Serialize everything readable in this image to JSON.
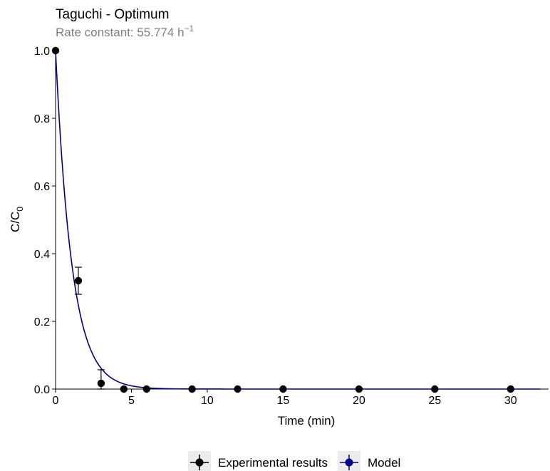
{
  "chart_data": {
    "type": "scatter",
    "title": "Taguchi - Optimum",
    "subtitle": {
      "prefix": "Rate constant: 55.774 h",
      "superscript": "−1"
    },
    "xlabel": "Time (min)",
    "ylabel": {
      "main": "C/C",
      "subscript": "0"
    },
    "xlim": [
      0,
      32.5
    ],
    "ylim": [
      0,
      1.0
    ],
    "x_ticks": [
      0,
      5,
      10,
      15,
      20,
      25,
      30
    ],
    "y_ticks": [
      0.0,
      0.2,
      0.4,
      0.6,
      0.8,
      1.0
    ],
    "x_tick_labels": [
      "0",
      "5",
      "10",
      "15",
      "20",
      "25",
      "30"
    ],
    "y_tick_labels": [
      "0.0",
      "0.2",
      "0.4",
      "0.6",
      "0.8",
      "1.0"
    ],
    "grid": false,
    "legend_position": "bottom",
    "series": [
      {
        "name": "Experimental results",
        "kind": "points",
        "color": "#000000",
        "points": [
          {
            "x": 0,
            "y": 1.0,
            "err": 0.0
          },
          {
            "x": 1.5,
            "y": 0.32,
            "err": 0.04
          },
          {
            "x": 3,
            "y": 0.017,
            "err": 0.04
          },
          {
            "x": 4.5,
            "y": 0.0,
            "err": 0.0
          },
          {
            "x": 6,
            "y": 0.0,
            "err": 0.0
          },
          {
            "x": 9,
            "y": 0.0,
            "err": 0.0
          },
          {
            "x": 12,
            "y": 0.0,
            "err": 0.0
          },
          {
            "x": 15,
            "y": 0.0,
            "err": 0.0
          },
          {
            "x": 20,
            "y": 0.0,
            "err": 0.0
          },
          {
            "x": 25,
            "y": 0.0,
            "err": 0.0
          },
          {
            "x": 30,
            "y": 0.0,
            "err": 0.0
          }
        ]
      },
      {
        "name": "Model",
        "kind": "line",
        "color": "#00008b",
        "model": "exponential decay C/C0 = exp(-k t)",
        "rate_constant_per_hour": 55.774
      }
    ]
  }
}
